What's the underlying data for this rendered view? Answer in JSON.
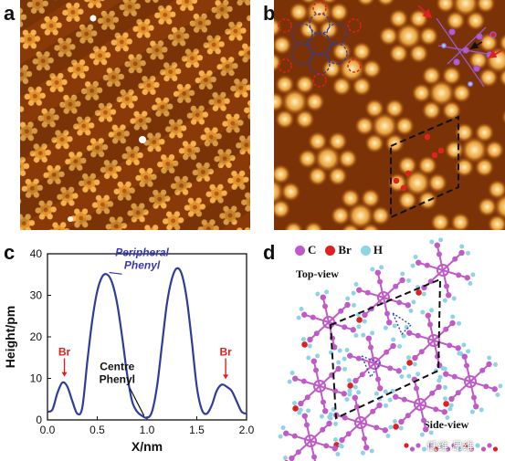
{
  "panels": {
    "a": {
      "letter": "a"
    },
    "b": {
      "letter": "b"
    },
    "c": {
      "letter": "c"
    },
    "d": {
      "letter": "d"
    }
  },
  "legend_d": {
    "items": [
      {
        "label": "C",
        "color": "#c05ac8"
      },
      {
        "label": "Br",
        "color": "#e02020"
      },
      {
        "label": "H",
        "color": "#8fd3e8"
      }
    ],
    "top_view": "Top-view",
    "side_view": "Side-view"
  },
  "watermark": "低维 昂维",
  "chart_data": {
    "type": "line",
    "xlabel": "X/nm",
    "ylabel": "Height/pm",
    "xlim": [
      0,
      2.0
    ],
    "ylim": [
      0,
      40
    ],
    "xticks": [
      "0.0",
      "0.5",
      "1.0",
      "1.5",
      "2.0"
    ],
    "yticks": [
      "0",
      "10",
      "20",
      "30",
      "40"
    ],
    "series": [
      {
        "x": [
          0.0,
          0.05,
          0.1,
          0.15,
          0.2,
          0.25,
          0.3,
          0.35,
          0.4,
          0.45,
          0.5,
          0.55,
          0.6,
          0.65,
          0.7,
          0.75,
          0.8,
          0.85,
          0.9,
          0.95,
          1.0,
          1.05,
          1.1,
          1.15,
          1.2,
          1.25,
          1.3,
          1.35,
          1.4,
          1.45,
          1.5,
          1.55,
          1.6,
          1.65,
          1.7,
          1.75,
          1.8,
          1.85,
          1.9,
          1.95,
          2.0
        ],
        "y": [
          2.0,
          2.5,
          6.5,
          9.0,
          8.0,
          4.5,
          1.5,
          3.0,
          14.0,
          24.0,
          31.0,
          34.5,
          35.0,
          33.0,
          28.0,
          20.0,
          11.0,
          4.5,
          2.0,
          1.0,
          0.5,
          2.0,
          8.0,
          18.0,
          28.0,
          34.0,
          36.5,
          35.0,
          29.0,
          19.0,
          8.0,
          2.5,
          1.5,
          3.5,
          7.0,
          8.5,
          8.0,
          7.0,
          4.5,
          2.0,
          1.5
        ],
        "color": "#2e3c9c"
      }
    ],
    "annotations": [
      {
        "text": "Br",
        "x": 0.17,
        "y": 15.5,
        "color": "#e02020",
        "arrow_to_y": 10.2
      },
      {
        "text": "Br",
        "x": 1.79,
        "y": 15.5,
        "color": "#e02020",
        "arrow_to_y": 9.6
      },
      {
        "text": "Peripheral",
        "text2": "Phenyl",
        "x": 0.95,
        "y": 39.5,
        "color": "#3a3ab0",
        "arrow_x": 0.62,
        "arrow_y": 35.5
      },
      {
        "text": "Centre",
        "text2": "Phenyl",
        "x": 0.7,
        "y": 12.0,
        "color": "#111111",
        "arrow_x": 0.97,
        "arrow_y": 1.0
      }
    ]
  }
}
